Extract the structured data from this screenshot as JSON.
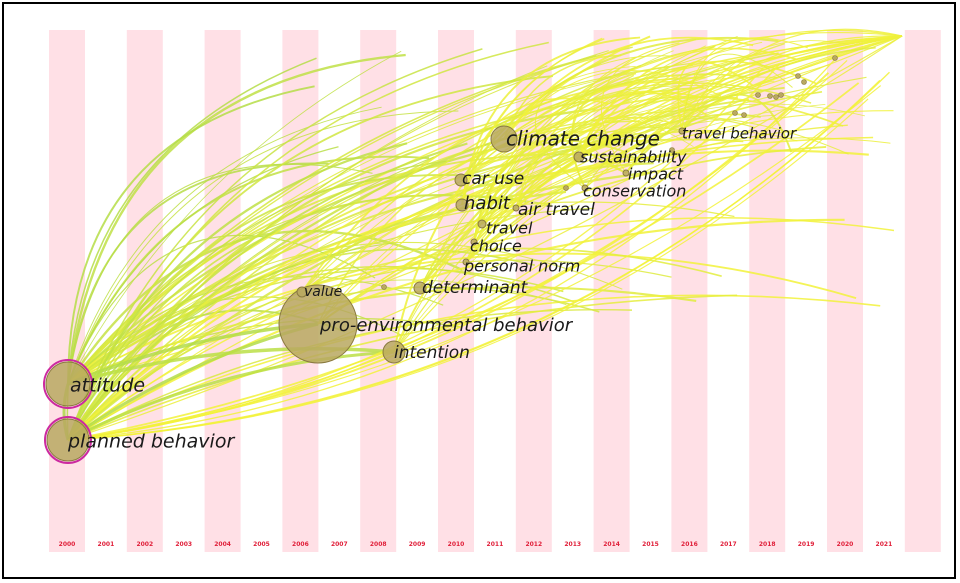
{
  "figure": {
    "years": [
      "2000",
      "2001",
      "2002",
      "2003",
      "2004",
      "2005",
      "2006",
      "2007",
      "2008",
      "2009",
      "2010",
      "2011",
      "2012",
      "2013",
      "2014",
      "2015",
      "2016",
      "2017",
      "2018",
      "2019",
      "2020",
      "2021"
    ],
    "colors": {
      "stripe": "#ffe0e6",
      "year_label": "#e0203a",
      "link_old": "#a8d84a",
      "link_new": "#f2f23a",
      "node_fill": "#b8a860",
      "node_stroke": "#8a7a40",
      "node_highlight": "#cc2aa0",
      "label": "#1a1a1a"
    },
    "nodes": [
      {
        "id": "attitude",
        "label": "attitude",
        "year": "2000",
        "highlight": true
      },
      {
        "id": "planned-behavior",
        "label": "planned behavior",
        "year": "2000",
        "highlight": true
      },
      {
        "id": "pro-environmental-behavior",
        "label": "pro-environmental behavior",
        "year": "2006"
      },
      {
        "id": "value",
        "label": "value",
        "year": "2006"
      },
      {
        "id": "intention",
        "label": "intention",
        "year": "2008"
      },
      {
        "id": "determinant",
        "label": "determinant",
        "year": "2009"
      },
      {
        "id": "personal-norm",
        "label": "personal norm",
        "year": "2010"
      },
      {
        "id": "choice",
        "label": "choice",
        "year": "2010"
      },
      {
        "id": "travel",
        "label": "travel",
        "year": "2010"
      },
      {
        "id": "habit",
        "label": "habit",
        "year": "2010"
      },
      {
        "id": "air-travel",
        "label": "air travel",
        "year": "2010"
      },
      {
        "id": "car-use",
        "label": "car use",
        "year": "2010"
      },
      {
        "id": "climate-change",
        "label": "climate change",
        "year": "2011"
      },
      {
        "id": "sustainability",
        "label": "sustainability",
        "year": "2013"
      },
      {
        "id": "impact",
        "label": "impact",
        "year": "2014"
      },
      {
        "id": "conservation",
        "label": "conservation",
        "year": "2014"
      },
      {
        "id": "travel-behavior",
        "label": "travel behavior",
        "year": "2016"
      }
    ]
  }
}
